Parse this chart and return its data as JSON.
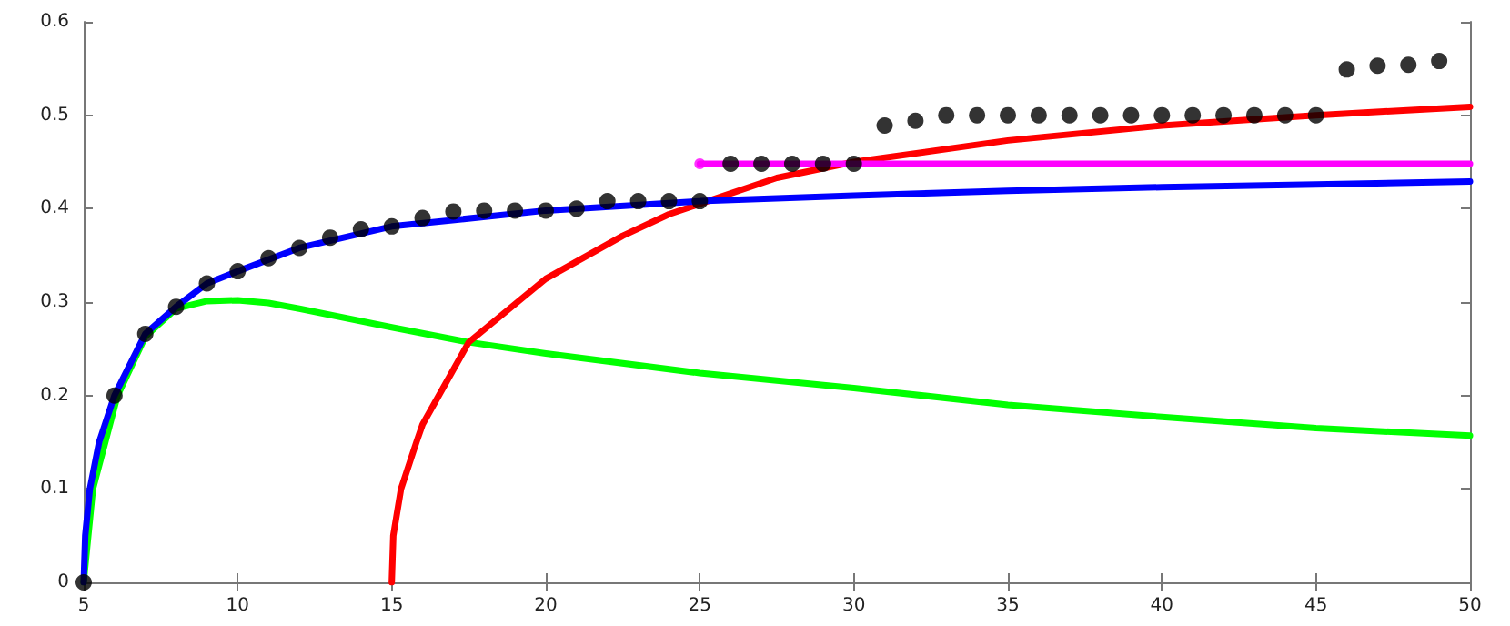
{
  "chart_data": {
    "type": "line",
    "xlim": [
      5,
      50
    ],
    "xticks": [
      5,
      10,
      15,
      20,
      25,
      30,
      35,
      40,
      45,
      50
    ],
    "ylim": [
      0,
      0.6
    ],
    "yticks": [
      0,
      0.1,
      0.2,
      0.3,
      0.4,
      0.5,
      0.6
    ],
    "grid": false,
    "legend": false,
    "line_style": "solid",
    "series": [
      {
        "color": "#00ff00",
        "marker": "none",
        "x": [
          5,
          5.3,
          5.7,
          6.1,
          7,
          8,
          9,
          10,
          11,
          12,
          15,
          17.5,
          20,
          25,
          30,
          35,
          40,
          45,
          50
        ],
        "values": [
          0,
          0.1,
          0.15,
          0.2,
          0.263,
          0.293,
          0.301,
          0.302,
          0.299,
          0.293,
          0.273,
          0.257,
          0.245,
          0.224,
          0.208,
          0.19,
          0.177,
          0.165,
          0.157
        ]
      },
      {
        "color": "#ff0000",
        "marker": "none",
        "x": [
          15,
          15.05,
          15.3,
          15.8,
          16,
          17.5,
          20,
          22.5,
          24,
          27.5,
          30,
          35,
          40,
          45,
          50
        ],
        "values": [
          0,
          0.05,
          0.1,
          0.15,
          0.169,
          0.257,
          0.325,
          0.371,
          0.394,
          0.433,
          0.45,
          0.473,
          0.489,
          0.5,
          0.509
        ]
      },
      {
        "color": "#0000ff",
        "marker": "none",
        "x": [
          5,
          5.05,
          5.2,
          5.5,
          6,
          7,
          8,
          9,
          10,
          12,
          15,
          20,
          25,
          30,
          35,
          40,
          45,
          50
        ],
        "values": [
          0,
          0.05,
          0.1,
          0.15,
          0.2,
          0.266,
          0.295,
          0.32,
          0.333,
          0.358,
          0.381,
          0.398,
          0.408,
          0.414,
          0.419,
          0.423,
          0.426,
          0.429
        ]
      },
      {
        "color": "#ff00ff",
        "marker": "none",
        "x": [
          25,
          50
        ],
        "values": [
          0.448,
          0.448
        ]
      },
      {
        "type": "scatter",
        "color": "#ff00ff",
        "marker": "circle",
        "x": [
          25
        ],
        "values": [
          0.448
        ]
      },
      {
        "type": "scatter",
        "color": "#000000",
        "marker": "circle",
        "x": [
          5,
          6,
          7,
          8,
          9,
          10,
          11,
          12,
          13,
          14,
          15,
          16,
          17,
          18,
          19,
          20,
          21,
          22,
          23,
          24,
          25,
          26,
          27,
          28,
          29,
          30,
          31,
          32,
          33,
          34,
          35,
          36,
          37,
          38,
          39,
          40,
          41,
          42,
          43,
          44,
          45,
          46,
          47,
          48,
          49
        ],
        "values": [
          0,
          0.2,
          0.266,
          0.295,
          0.32,
          0.333,
          0.347,
          0.358,
          0.369,
          0.378,
          0.381,
          0.39,
          0.397,
          0.398,
          0.398,
          0.398,
          0.4,
          0.408,
          0.408,
          0.408,
          0.408,
          0.448,
          0.448,
          0.448,
          0.448,
          0.448,
          0.489,
          0.494,
          0.5,
          0.5,
          0.5,
          0.5,
          0.5,
          0.5,
          0.5,
          0.5,
          0.5,
          0.5,
          0.5,
          0.5,
          0.5,
          0.549,
          0.553,
          0.554,
          0.558
        ]
      }
    ]
  }
}
